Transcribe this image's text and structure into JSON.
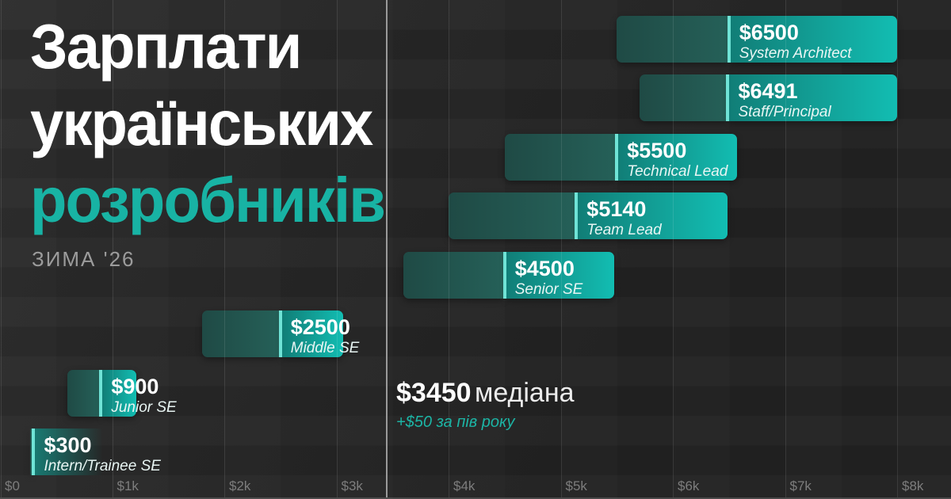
{
  "title": {
    "lines": [
      "Зарплати",
      "українських",
      "розробників"
    ],
    "accent_line_index": 2,
    "accent_color": "#18b3a4"
  },
  "subtitle": "ЗИМА '26",
  "median_annotation": {
    "value_label": "$3450",
    "word": "медіана",
    "delta_note": "+$50 за пів року"
  },
  "chart_data": {
    "type": "bar",
    "orientation": "horizontal",
    "title": "Зарплати українських розробників",
    "period": "ЗИМА '26",
    "unit": "USD per month",
    "series": [
      {
        "role": "System Architect",
        "value_label": "$6500",
        "median": 6500,
        "min": 5500,
        "max": 8000
      },
      {
        "role": "Staff/Principal",
        "value_label": "$6491",
        "median": 6491,
        "min": 5700,
        "max": 8000
      },
      {
        "role": "Technical Lead",
        "value_label": "$5500",
        "median": 5500,
        "min": 4500,
        "max": 6570
      },
      {
        "role": "Team Lead",
        "value_label": "$5140",
        "median": 5140,
        "min": 4000,
        "max": 6490
      },
      {
        "role": "Senior SE",
        "value_label": "$4500",
        "median": 4500,
        "min": 3600,
        "max": 5480
      },
      {
        "role": "Middle SE",
        "value_label": "$2500",
        "median": 2500,
        "min": 1800,
        "max": 3060
      },
      {
        "role": "Junior SE",
        "value_label": "$900",
        "median": 900,
        "min": 600,
        "max": 1215
      },
      {
        "role": "Intern/Trainee SE",
        "value_label": "$300",
        "median": 300,
        "min": 270,
        "max": 920,
        "fade_out": true
      }
    ],
    "overall_median": 3450,
    "median_line_value": 3450,
    "x_axis": {
      "min": 0,
      "max": 8480,
      "grid": true,
      "ticks": [
        {
          "label": "$0",
          "value": 0
        },
        {
          "label": "$1k",
          "value": 1000
        },
        {
          "label": "$2k",
          "value": 2000
        },
        {
          "label": "$3k",
          "value": 3000
        },
        {
          "label": "$4k",
          "value": 4000
        },
        {
          "label": "$5k",
          "value": 5000
        },
        {
          "label": "$6k",
          "value": 6000
        },
        {
          "label": "$7k",
          "value": 7000
        },
        {
          "label": "$8k",
          "value": 8000
        }
      ]
    },
    "colors": {
      "background": "#232323",
      "bar_range_dark_start": "#1f4a45",
      "bar_range_dark_end": "#256058",
      "bar_bright_start": "#117e77",
      "bar_bright_end": "#12bdb2",
      "median_divider": "#6fe3d6",
      "median_line": "#9a9a9a",
      "accent_teal": "#18b3a4"
    }
  }
}
